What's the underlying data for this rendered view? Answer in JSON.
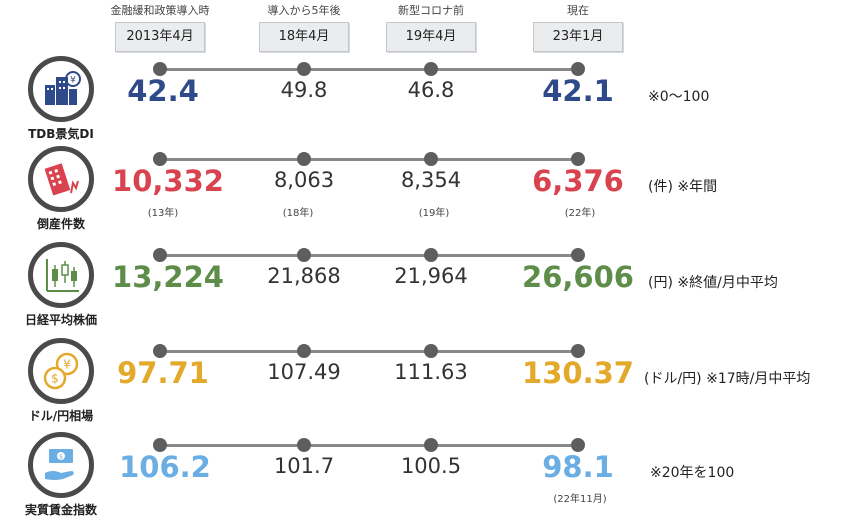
{
  "columns": [
    {
      "note": "金融緩和政策導入時",
      "label": "2013年4月"
    },
    {
      "note": "導入から5年後",
      "label": "18年4月"
    },
    {
      "note": "新型コロナ前",
      "label": "19年4月"
    },
    {
      "note": "現在",
      "label": "23年1月"
    }
  ],
  "rows": [
    {
      "label": "TDB景気DI",
      "icon": "city-buildings-icon",
      "color": "#2f4a8a",
      "values": [
        "42.4",
        "49.8",
        "46.8",
        "42.1"
      ],
      "subs": [
        "",
        "",
        "",
        ""
      ],
      "unit": "※0～100"
    },
    {
      "label": "倒産件数",
      "icon": "collapsing-building-icon",
      "color": "#d9434f",
      "values": [
        "10,332",
        "8,063",
        "8,354",
        "6,376"
      ],
      "subs": [
        "(13年)",
        "(18年)",
        "(19年)",
        "(22年)"
      ],
      "unit": "(件) ※年間"
    },
    {
      "label": "日経平均株価",
      "icon": "candlestick-chart-icon",
      "color": "#5e8d4a",
      "values": [
        "13,224",
        "21,868",
        "21,964",
        "26,606"
      ],
      "subs": [
        "",
        "",
        "",
        ""
      ],
      "unit": "(円) ※終値/月中平均"
    },
    {
      "label": "ドル/円相場",
      "icon": "coins-exchange-icon",
      "color": "#e3a92b",
      "values": [
        "97.71",
        "107.49",
        "111.63",
        "130.37"
      ],
      "subs": [
        "",
        "",
        "",
        ""
      ],
      "unit": "(ドル/円) ※17時/月中平均"
    },
    {
      "label": "実質賃金指数",
      "icon": "hand-money-icon",
      "color": "#6aaee3",
      "values": [
        "106.2",
        "101.7",
        "100.5",
        "98.1"
      ],
      "subs": [
        "",
        "",
        "",
        "(22年11月)"
      ],
      "unit": "※20年を100"
    }
  ],
  "chart_data": {
    "type": "table",
    "categories": [
      "2013年4月",
      "18年4月",
      "19年4月",
      "23年1月"
    ],
    "series": [
      {
        "name": "TDB景気DI",
        "values": [
          42.4,
          49.8,
          46.8,
          42.1
        ]
      },
      {
        "name": "倒産件数",
        "values": [
          10332,
          8063,
          8354,
          6376
        ]
      },
      {
        "name": "日経平均株価",
        "values": [
          13224,
          21868,
          21964,
          26606
        ]
      },
      {
        "name": "ドル/円相場",
        "values": [
          97.71,
          107.49,
          111.63,
          130.37
        ]
      },
      {
        "name": "実質賃金指数",
        "values": [
          106.2,
          101.7,
          100.5,
          98.1
        ]
      }
    ]
  }
}
